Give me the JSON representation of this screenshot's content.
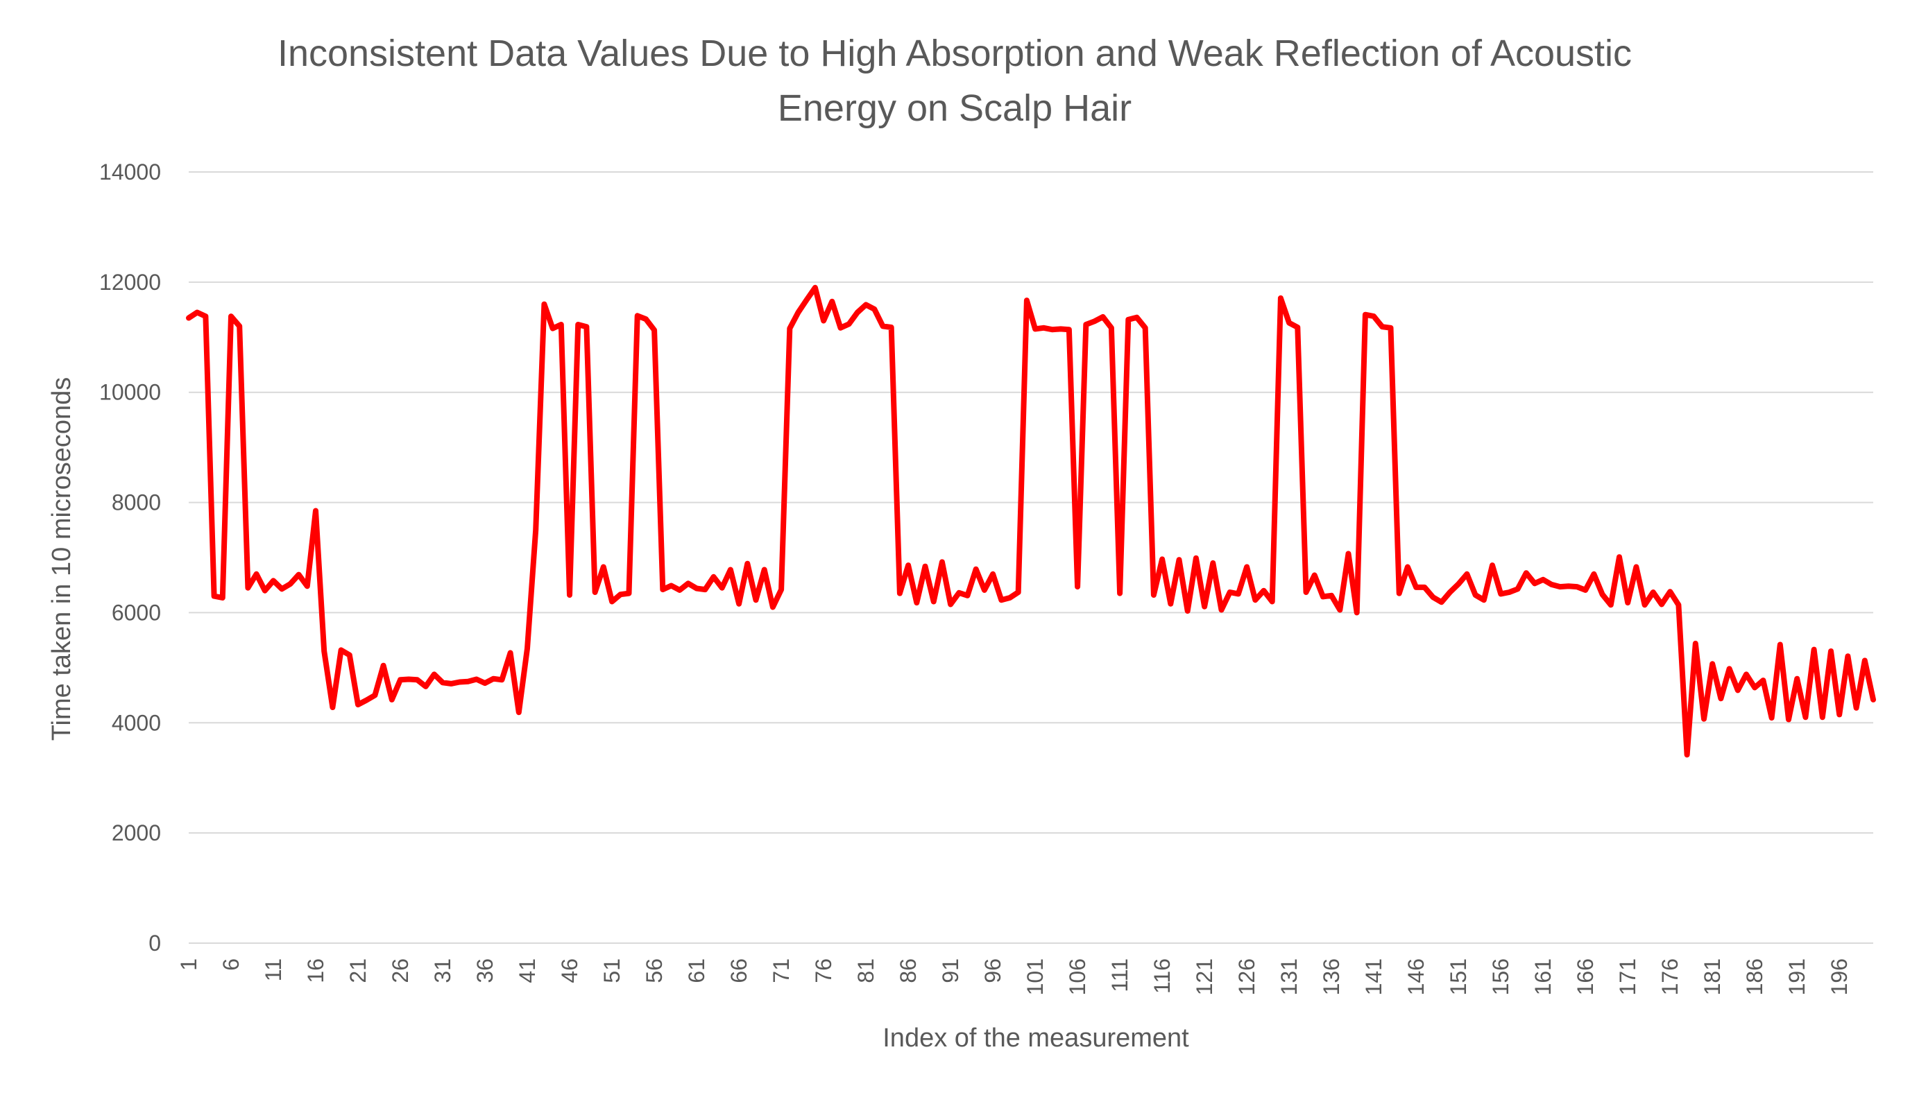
{
  "chart_data": {
    "type": "line",
    "title": "Inconsistent Data Values Due to High Absorption and Weak Reflection of Acoustic Energy on Scalp Hair",
    "title_lines": [
      "Inconsistent Data Values Due to High Absorption and Weak Reflection of Acoustic",
      "Energy on Scalp Hair"
    ],
    "xlabel": "Index of the measurement",
    "ylabel": "Time taken in 10 microseconds",
    "ylim": [
      0,
      14000
    ],
    "yticks": [
      0,
      2000,
      4000,
      6000,
      8000,
      10000,
      12000,
      14000
    ],
    "xticks": [
      1,
      6,
      11,
      16,
      21,
      26,
      31,
      36,
      41,
      46,
      51,
      56,
      61,
      66,
      71,
      76,
      81,
      86,
      91,
      96,
      101,
      106,
      111,
      116,
      121,
      126,
      131,
      136,
      141,
      146,
      151,
      156,
      161,
      166,
      171,
      176,
      181,
      186,
      191,
      196
    ],
    "x_range": [
      1,
      200
    ],
    "grid": true,
    "legend": "none",
    "series_color": "#ff0000",
    "x": [
      1,
      2,
      3,
      4,
      5,
      6,
      7,
      8,
      9,
      10,
      11,
      12,
      13,
      14,
      15,
      16,
      17,
      18,
      19,
      20,
      21,
      22,
      23,
      24,
      25,
      26,
      27,
      28,
      29,
      30,
      31,
      32,
      33,
      34,
      35,
      36,
      37,
      38,
      39,
      40,
      41,
      42,
      43,
      44,
      45,
      46,
      47,
      48,
      49,
      50,
      51,
      52,
      53,
      54,
      55,
      56,
      57,
      58,
      59,
      60,
      61,
      62,
      63,
      64,
      65,
      66,
      67,
      68,
      69,
      70,
      71,
      72,
      73,
      74,
      75,
      76,
      77,
      78,
      79,
      80,
      81,
      82,
      83,
      84,
      85,
      86,
      87,
      88,
      89,
      90,
      91,
      92,
      93,
      94,
      95,
      96,
      97,
      98,
      99,
      100,
      101,
      102,
      103,
      104,
      105,
      106,
      107,
      108,
      109,
      110,
      111,
      112,
      113,
      114,
      115,
      116,
      117,
      118,
      119,
      120,
      121,
      122,
      123,
      124,
      125,
      126,
      127,
      128,
      129,
      130,
      131,
      132,
      133,
      134,
      135,
      136,
      137,
      138,
      139,
      140,
      141,
      142,
      143,
      144,
      145,
      146,
      147,
      148,
      149,
      150,
      151,
      152,
      153,
      154,
      155,
      156,
      157,
      158,
      159,
      160,
      161,
      162,
      163,
      164,
      165,
      166,
      167,
      168,
      169,
      170,
      171,
      172,
      173,
      174,
      175,
      176,
      177,
      178,
      179,
      180,
      181,
      182,
      183,
      184,
      185,
      186,
      187,
      188,
      189,
      190,
      191,
      192,
      193,
      194,
      195,
      196,
      197,
      198,
      199,
      200
    ],
    "values": [
      11350,
      11450,
      11380,
      6300,
      6270,
      11380,
      11200,
      6450,
      6700,
      6400,
      6580,
      6430,
      6520,
      6690,
      6480,
      7850,
      5300,
      4280,
      5320,
      5230,
      4330,
      4410,
      4500,
      5040,
      4420,
      4780,
      4790,
      4780,
      4660,
      4880,
      4730,
      4710,
      4740,
      4750,
      4790,
      4720,
      4800,
      4780,
      5270,
      4190,
      5350,
      7500,
      11600,
      11160,
      11230,
      6320,
      11230,
      11190,
      6370,
      6830,
      6200,
      6330,
      6350,
      11390,
      11330,
      11130,
      6420,
      6490,
      6410,
      6530,
      6440,
      6420,
      6650,
      6450,
      6780,
      6160,
      6890,
      6230,
      6780,
      6100,
      6420,
      11160,
      11450,
      11680,
      11900,
      11300,
      11650,
      11170,
      11240,
      11450,
      11590,
      11510,
      11200,
      11180,
      6350,
      6860,
      6180,
      6840,
      6200,
      6920,
      6150,
      6360,
      6310,
      6790,
      6410,
      6700,
      6230,
      6270,
      6370,
      11670,
      11150,
      11170,
      11140,
      11150,
      11140,
      6470,
      11230,
      11290,
      11370,
      11170,
      6350,
      11320,
      11360,
      11170,
      6320,
      6970,
      6160,
      6960,
      6030,
      6990,
      6110,
      6900,
      6050,
      6370,
      6340,
      6830,
      6230,
      6400,
      6200,
      11710,
      11260,
      11180,
      6370,
      6680,
      6290,
      6310,
      6050,
      7070,
      6000,
      11410,
      11380,
      11190,
      11170,
      6350,
      6830,
      6460,
      6460,
      6280,
      6190,
      6370,
      6520,
      6700,
      6320,
      6230,
      6860,
      6340,
      6370,
      6430,
      6720,
      6530,
      6600,
      6510,
      6470,
      6480,
      6470,
      6410,
      6700,
      6330,
      6140,
      7010,
      6180,
      6830,
      6140,
      6370,
      6150,
      6380,
      6140,
      3420,
      5440,
      4070,
      5070,
      4440,
      4980,
      4590,
      4880,
      4640,
      4770,
      4090,
      5420,
      4060,
      4800,
      4100,
      5330,
      4100,
      5300,
      4150,
      5210,
      4270,
      5130,
      4420
    ]
  }
}
